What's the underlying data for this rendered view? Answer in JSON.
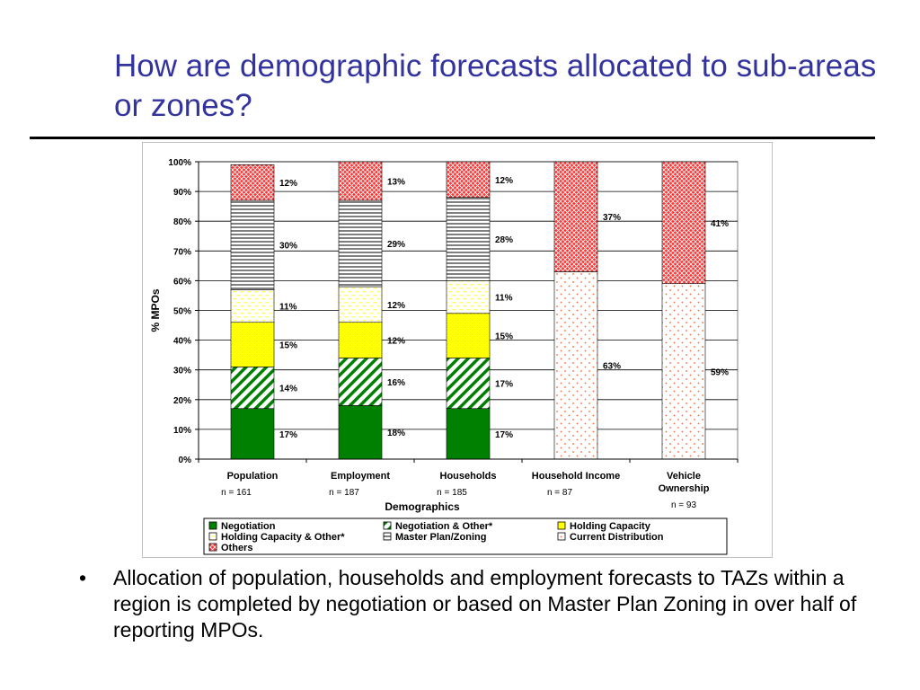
{
  "slide": {
    "title": "How are demographic forecasts allocated to sub-areas or zones?",
    "bullet_symbol": "•",
    "bullet": "Allocation of population, households and employment forecasts to TAZs within a region is completed by negotiation or based on Master Plan Zoning in over half of reporting MPOs."
  },
  "chart_data": {
    "type": "bar",
    "stacked": true,
    "percent": true,
    "xlabel": "Demographics",
    "ylabel": "% MPOs",
    "ylim": [
      0,
      100
    ],
    "yticks": [
      "0%",
      "10%",
      "20%",
      "30%",
      "40%",
      "50%",
      "60%",
      "70%",
      "80%",
      "90%",
      "100%"
    ],
    "categories": [
      {
        "label": "Population",
        "n": "n = 161"
      },
      {
        "label": "Employment",
        "n": "n = 187"
      },
      {
        "label": "Households",
        "n": "n = 185"
      },
      {
        "label": "Household Income",
        "n": "n = 87"
      },
      {
        "label": "Vehicle Ownership",
        "n": "n = 93"
      }
    ],
    "series": [
      {
        "name": "Negotiation",
        "pattern": "solid-green",
        "color": "#008000",
        "values": [
          17,
          18,
          17,
          0,
          0
        ]
      },
      {
        "name": "Negotiation & Other*",
        "pattern": "diagonal-green",
        "color": "#008000",
        "values": [
          14,
          16,
          17,
          0,
          0
        ]
      },
      {
        "name": "Holding Capacity",
        "pattern": "dotted-yellow",
        "color": "#ffff00",
        "values": [
          15,
          12,
          15,
          0,
          0
        ]
      },
      {
        "name": "Holding Capacity & Other*",
        "pattern": "dashed-light-yellow",
        "color": "#ffff99",
        "values": [
          11,
          12,
          11,
          0,
          0
        ]
      },
      {
        "name": "Master Plan/Zoning",
        "pattern": "horizontal-lines",
        "color": "#000000",
        "values": [
          30,
          29,
          28,
          0,
          0
        ]
      },
      {
        "name": "Current Distribution",
        "pattern": "dots-orange",
        "color": "#ff6633",
        "values": [
          0,
          0,
          0,
          63,
          59
        ]
      },
      {
        "name": "Others",
        "pattern": "crosshatch-red",
        "color": "#ff3333",
        "values": [
          12,
          13,
          12,
          37,
          41
        ]
      }
    ],
    "data_labels": [
      [
        "17%",
        "14%",
        "15%",
        "11%",
        "30%",
        "",
        "12%"
      ],
      [
        "18%",
        "16%",
        "12%",
        "12%",
        "29%",
        "",
        "13%"
      ],
      [
        "17%",
        "17%",
        "15%",
        "11%",
        "28%",
        "",
        "12%"
      ],
      [
        "",
        "",
        "",
        "",
        "",
        "63%",
        "37%"
      ],
      [
        "",
        "",
        "",
        "",
        "",
        "59%",
        "41%"
      ]
    ],
    "grid": true,
    "legend_position": "bottom"
  }
}
